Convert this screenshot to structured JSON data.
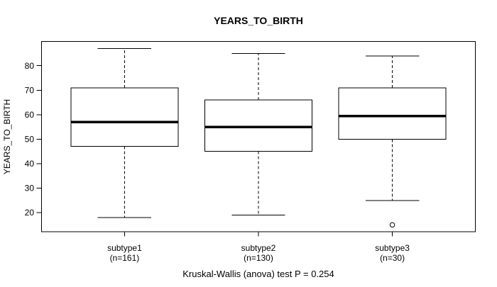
{
  "chart_data": {
    "type": "boxplot",
    "title": "YEARS_TO_BIRTH",
    "ylabel": "YEARS_TO_BIRTH",
    "caption": "Kruskal-Wallis (anova) test P = 0.254",
    "p_value": "0.254",
    "ylim": [
      12.2,
      89.9
    ],
    "yticks": [
      20,
      30,
      40,
      50,
      60,
      70,
      80
    ],
    "grid": false,
    "legend": "none",
    "colors": {
      "foreground": "#000000",
      "background": "#ffffff",
      "box_fill": "#ffffff"
    },
    "groups": [
      {
        "label": "subtype1",
        "sublabel": "(n=161)",
        "n": 161,
        "whisker_low": 18,
        "q1": 47,
        "median": 57,
        "q3": 71,
        "whisker_high": 87,
        "outliers": []
      },
      {
        "label": "subtype2",
        "sublabel": "(n=130)",
        "n": 130,
        "whisker_low": 19,
        "q1": 45,
        "median": 55,
        "q3": 66,
        "whisker_high": 85,
        "outliers": []
      },
      {
        "label": "subtype3",
        "sublabel": "(n=30)",
        "n": 30,
        "whisker_low": 25,
        "q1": 50,
        "median": 59.5,
        "q3": 71,
        "whisker_high": 84,
        "outliers": [
          15
        ]
      }
    ]
  }
}
